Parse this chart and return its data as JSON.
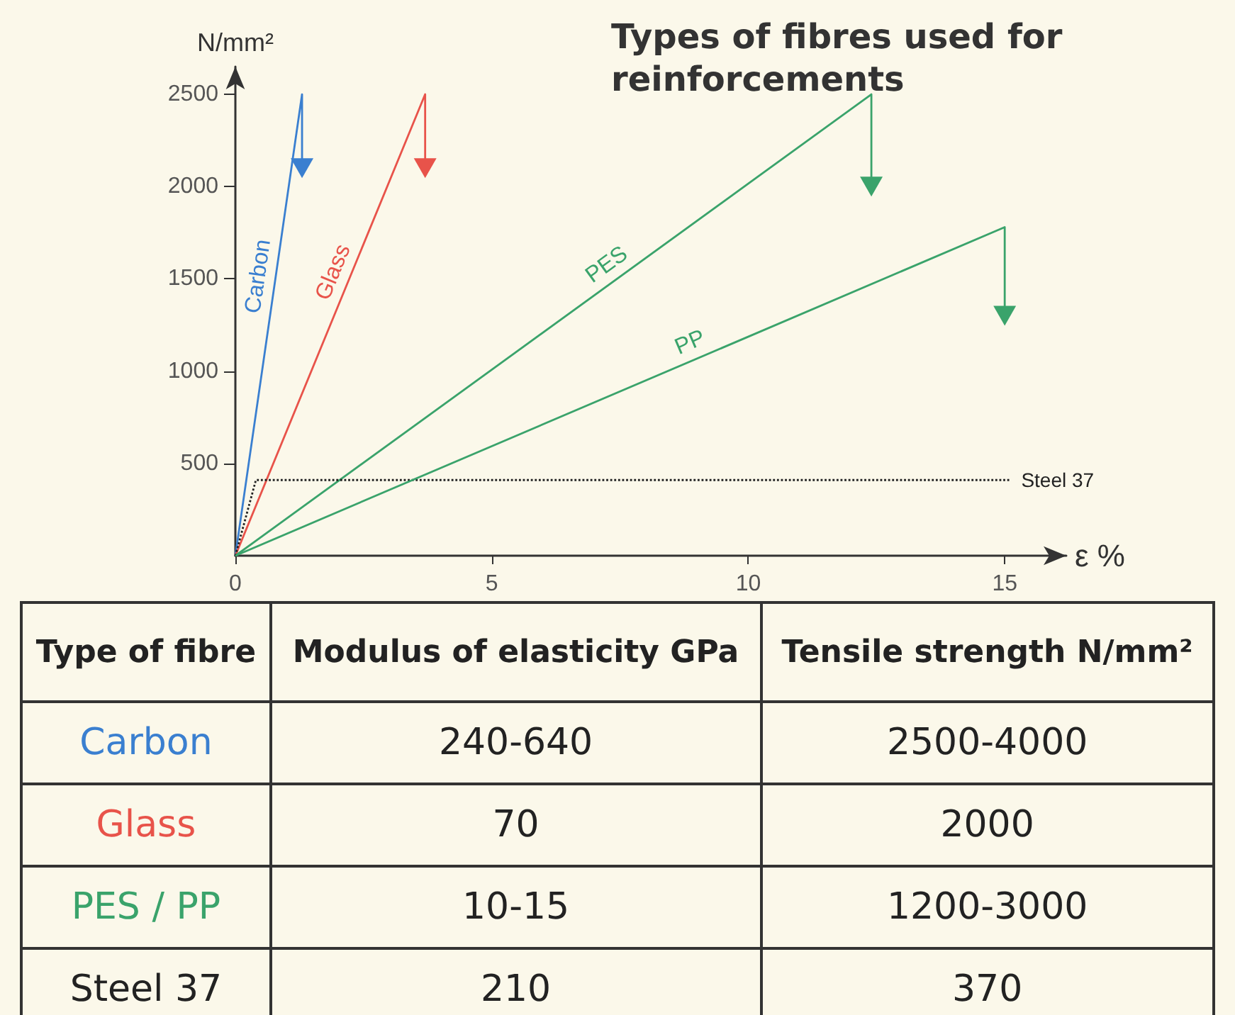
{
  "chart_data": {
    "type": "line",
    "title": "Types of fibres used for reinforcements",
    "xlabel": "ε %",
    "ylabel": "N/mm²",
    "xlim": [
      0,
      16.2
    ],
    "xticks": [
      0,
      5,
      10,
      15
    ],
    "ylim": [
      0,
      2650
    ],
    "yticks": [
      500,
      1000,
      1500,
      2000,
      2500
    ],
    "grid": false,
    "legend": false,
    "marker": "none",
    "series": [
      {
        "name": "Carbon",
        "color": "#3a7fd0",
        "x": [
          0,
          1.3,
          1.3
        ],
        "values": [
          0,
          2500,
          2100
        ]
      },
      {
        "name": "Glass",
        "color": "#e8534a",
        "x": [
          0,
          3.7,
          3.7
        ],
        "values": [
          0,
          2500,
          2100
        ]
      },
      {
        "name": "PES",
        "color": "#3aa36b",
        "x": [
          0,
          12.4,
          12.4
        ],
        "values": [
          0,
          2500,
          2000
        ]
      },
      {
        "name": "Steel 37",
        "color": "#222222",
        "x": [
          0,
          0.4,
          15.1
        ],
        "values": [
          0,
          410,
          410
        ],
        "line_style": "dotted"
      },
      {
        "name": "PP",
        "color": "#3aa36b",
        "x": [
          0,
          15,
          15
        ],
        "values": [
          0,
          1780,
          1300
        ]
      }
    ],
    "annotations": [
      "Type of fibre",
      "Modulus of elasticity GPa",
      "Tensile strength N/mm²",
      "Carbon",
      "240-640",
      "2500-4000",
      "Glass",
      "70",
      "2000",
      "PES / PP",
      "10-15",
      "1200-3000",
      "Steel 37",
      "210",
      "370"
    ]
  }
}
